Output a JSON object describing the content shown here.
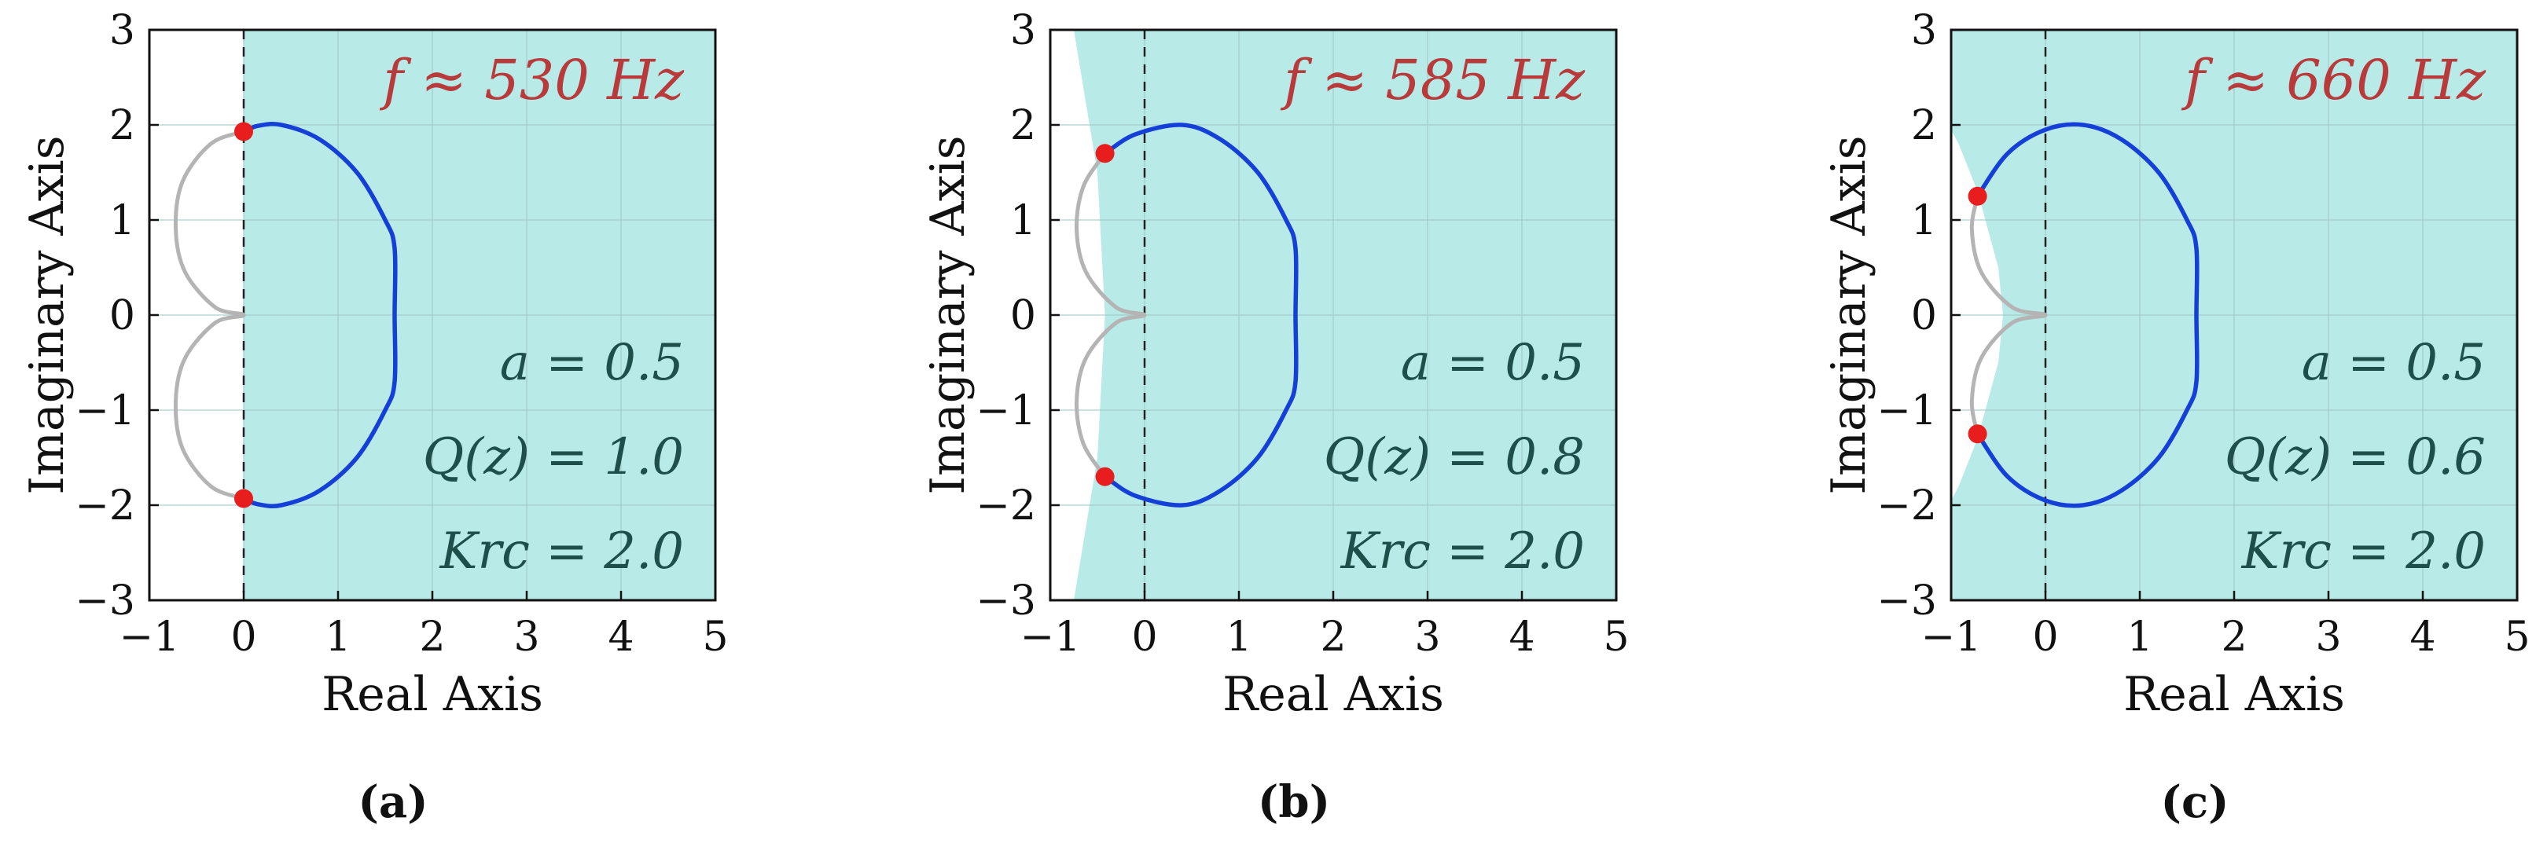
{
  "chart_data": [
    {
      "type": "line",
      "panel": "a",
      "caption": "(a)",
      "xlabel": "Real Axis",
      "ylabel": "Imaginary Axis",
      "xlim": [
        -1,
        5
      ],
      "ylim": [
        -3,
        3
      ],
      "xticks": [
        -1,
        0,
        1,
        2,
        3,
        4,
        5
      ],
      "yticks": [
        -3,
        -2,
        -1,
        0,
        1,
        2,
        3
      ],
      "xtick_labels": [
        "−1",
        "0",
        "1",
        "2",
        "3",
        "4",
        "5"
      ],
      "ytick_labels": [
        "−3",
        "−2",
        "−1",
        "0",
        "1",
        "2",
        "3"
      ],
      "grid": true,
      "frequency_label": "f ≈ 530 Hz",
      "params": [
        "a = 0.5",
        "Q(z) = 1.0",
        "Krc = 2.0"
      ],
      "stable_region": {
        "color": "#b8eae8",
        "boundary_x": [
          0,
          0,
          0,
          0,
          0
        ],
        "boundary_y": [
          3,
          1.5,
          0,
          -1.5,
          -3
        ]
      },
      "curves": {
        "nyquist_visible": {
          "color": "#1540d8",
          "points": [
            [
              0,
              1.93
            ],
            [
              0.15,
              1.99
            ],
            [
              0.4,
              2.0
            ],
            [
              0.8,
              1.85
            ],
            [
              1.2,
              1.5
            ],
            [
              1.5,
              1.0
            ],
            [
              1.6,
              0.7
            ],
            [
              1.6,
              0.0
            ],
            [
              1.6,
              -0.7
            ],
            [
              1.5,
              -1.0
            ],
            [
              1.2,
              -1.5
            ],
            [
              0.8,
              -1.85
            ],
            [
              0.4,
              -2.0
            ],
            [
              0.15,
              -1.99
            ],
            [
              0,
              -1.93
            ]
          ]
        },
        "nyquist_gray": {
          "color": "#b4b4b4",
          "points": [
            [
              0,
              1.93
            ],
            [
              -0.35,
              1.8
            ],
            [
              -0.65,
              1.4
            ],
            [
              -0.72,
              0.9
            ],
            [
              -0.62,
              0.45
            ],
            [
              -0.3,
              0.08
            ],
            [
              0,
              0.0
            ],
            [
              -0.3,
              -0.08
            ],
            [
              -0.62,
              -0.45
            ],
            [
              -0.72,
              -0.9
            ],
            [
              -0.65,
              -1.4
            ],
            [
              -0.35,
              -1.8
            ],
            [
              0,
              -1.93
            ]
          ]
        }
      },
      "crossings": {
        "color": "#e81e1e",
        "points": [
          [
            0,
            1.93
          ],
          [
            0,
            -1.93
          ]
        ]
      }
    },
    {
      "type": "line",
      "panel": "b",
      "caption": "(b)",
      "xlabel": "Real Axis",
      "ylabel": "Imaginary Axis",
      "xlim": [
        -1,
        5
      ],
      "ylim": [
        -3,
        3
      ],
      "xticks": [
        -1,
        0,
        1,
        2,
        3,
        4,
        5
      ],
      "yticks": [
        -3,
        -2,
        -1,
        0,
        1,
        2,
        3
      ],
      "xtick_labels": [
        "−1",
        "0",
        "1",
        "2",
        "3",
        "4",
        "5"
      ],
      "ytick_labels": [
        "−3",
        "−2",
        "−1",
        "0",
        "1",
        "2",
        "3"
      ],
      "grid": true,
      "frequency_label": "f ≈ 585 Hz",
      "params": [
        "a = 0.5",
        "Q(z) = 0.8",
        "Krc = 2.0"
      ],
      "stable_region": {
        "color": "#b8eae8",
        "boundary_x": [
          -0.75,
          -0.5,
          -0.42,
          -0.5,
          -0.75
        ],
        "boundary_y": [
          3,
          1.5,
          0,
          -1.5,
          -3
        ]
      },
      "curves": {
        "nyquist_visible": {
          "color": "#1540d8",
          "points": [
            [
              -0.42,
              1.7
            ],
            [
              -0.1,
              1.9
            ],
            [
              0.4,
              2.0
            ],
            [
              0.8,
              1.85
            ],
            [
              1.2,
              1.5
            ],
            [
              1.5,
              1.0
            ],
            [
              1.6,
              0.7
            ],
            [
              1.6,
              0.0
            ],
            [
              1.6,
              -0.7
            ],
            [
              1.5,
              -1.0
            ],
            [
              1.2,
              -1.5
            ],
            [
              0.8,
              -1.85
            ],
            [
              0.4,
              -2.0
            ],
            [
              -0.1,
              -1.9
            ],
            [
              -0.42,
              -1.7
            ]
          ]
        },
        "nyquist_gray": {
          "color": "#b4b4b4",
          "points": [
            [
              -0.42,
              1.7
            ],
            [
              -0.65,
              1.35
            ],
            [
              -0.72,
              0.9
            ],
            [
              -0.62,
              0.45
            ],
            [
              -0.3,
              0.08
            ],
            [
              0,
              0.0
            ],
            [
              -0.3,
              -0.08
            ],
            [
              -0.62,
              -0.45
            ],
            [
              -0.72,
              -0.9
            ],
            [
              -0.65,
              -1.35
            ],
            [
              -0.42,
              -1.7
            ]
          ]
        }
      },
      "crossings": {
        "color": "#e81e1e",
        "points": [
          [
            -0.42,
            1.7
          ],
          [
            -0.42,
            -1.7
          ]
        ]
      }
    },
    {
      "type": "line",
      "panel": "c",
      "caption": "(c)",
      "xlabel": "Real Axis",
      "ylabel": "Imaginary Axis",
      "xlim": [
        -1,
        5
      ],
      "ylim": [
        -3,
        3
      ],
      "xticks": [
        -1,
        0,
        1,
        2,
        3,
        4,
        5
      ],
      "yticks": [
        -3,
        -2,
        -1,
        0,
        1,
        2,
        3
      ],
      "xtick_labels": [
        "−1",
        "0",
        "1",
        "2",
        "3",
        "4",
        "5"
      ],
      "ytick_labels": [
        "−3",
        "−2",
        "−1",
        "0",
        "1",
        "2",
        "3"
      ],
      "grid": true,
      "frequency_label": "f ≈ 660 Hz",
      "params": [
        "a = 0.5",
        "Q(z) = 0.6",
        "Krc = 2.0"
      ],
      "stable_region": {
        "color": "#b8eae8",
        "boundary_x": [
          -1,
          -1,
          -0.92,
          -0.72,
          -0.5,
          -0.45,
          -0.5,
          -0.72,
          -0.92,
          -1,
          -1
        ],
        "boundary_y": [
          3,
          1.95,
          1.8,
          1.3,
          0.5,
          0,
          -0.5,
          -1.3,
          -1.8,
          -1.95,
          -3
        ]
      },
      "curves": {
        "nyquist_visible": {
          "color": "#1540d8",
          "points": [
            [
              -0.72,
              1.25
            ],
            [
              -0.4,
              1.7
            ],
            [
              0.0,
              1.95
            ],
            [
              0.4,
              2.0
            ],
            [
              0.8,
              1.85
            ],
            [
              1.2,
              1.5
            ],
            [
              1.5,
              1.0
            ],
            [
              1.6,
              0.7
            ],
            [
              1.6,
              0.0
            ],
            [
              1.6,
              -0.7
            ],
            [
              1.5,
              -1.0
            ],
            [
              1.2,
              -1.5
            ],
            [
              0.8,
              -1.85
            ],
            [
              0.4,
              -2.0
            ],
            [
              0.0,
              -1.95
            ],
            [
              -0.4,
              -1.7
            ],
            [
              -0.72,
              -1.25
            ]
          ]
        },
        "nyquist_gray": {
          "color": "#b4b4b4",
          "points": [
            [
              -0.72,
              1.25
            ],
            [
              -0.78,
              0.9
            ],
            [
              -0.68,
              0.45
            ],
            [
              -0.35,
              0.08
            ],
            [
              0,
              0.0
            ],
            [
              -0.35,
              -0.08
            ],
            [
              -0.68,
              -0.45
            ],
            [
              -0.78,
              -0.9
            ],
            [
              -0.72,
              -1.25
            ]
          ]
        }
      },
      "crossings": {
        "color": "#e81e1e",
        "points": [
          [
            -0.72,
            1.25
          ],
          [
            -0.72,
            -1.25
          ]
        ]
      }
    }
  ]
}
